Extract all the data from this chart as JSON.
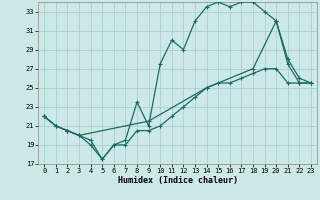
{
  "xlabel": "Humidex (Indice chaleur)",
  "xlim": [
    -0.5,
    23.5
  ],
  "ylim": [
    17,
    34
  ],
  "yticks": [
    17,
    19,
    21,
    23,
    25,
    27,
    29,
    31,
    33
  ],
  "xticks": [
    0,
    1,
    2,
    3,
    4,
    5,
    6,
    7,
    8,
    9,
    10,
    11,
    12,
    13,
    14,
    15,
    16,
    17,
    18,
    19,
    20,
    21,
    22,
    23
  ],
  "bg_color": "#cce9e7",
  "grid_color": "#aacfcd",
  "line_color": "#1a6b66",
  "line1_x": [
    0,
    1,
    2,
    3,
    4,
    5,
    6,
    7,
    8,
    9,
    10,
    11,
    12,
    13,
    14,
    15,
    16,
    17,
    18,
    19,
    20,
    21,
    22,
    23
  ],
  "line1_y": [
    22,
    21,
    20.5,
    20,
    19.5,
    17.5,
    19,
    19,
    20.5,
    20.5,
    21,
    22,
    23,
    24,
    25,
    25.5,
    25.5,
    26,
    26.5,
    27,
    27,
    25.5,
    25.5,
    25.5
  ],
  "line2_x": [
    0,
    1,
    2,
    3,
    4,
    5,
    6,
    7,
    8,
    9,
    10,
    11,
    12,
    13,
    14,
    15,
    16,
    17,
    18,
    19,
    20,
    21,
    22,
    23
  ],
  "line2_y": [
    22,
    21,
    20.5,
    20,
    19,
    17.5,
    19,
    19.5,
    23.5,
    21,
    27.5,
    30,
    29,
    32,
    33.5,
    34,
    33.5,
    34,
    34,
    33,
    32,
    28,
    26,
    25.5
  ],
  "line3_x": [
    0,
    1,
    2,
    3,
    9,
    14,
    18,
    20,
    21,
    22,
    23
  ],
  "line3_y": [
    22,
    21,
    20.5,
    20,
    21.5,
    25,
    27,
    32,
    27.5,
    25.5,
    25.5
  ]
}
